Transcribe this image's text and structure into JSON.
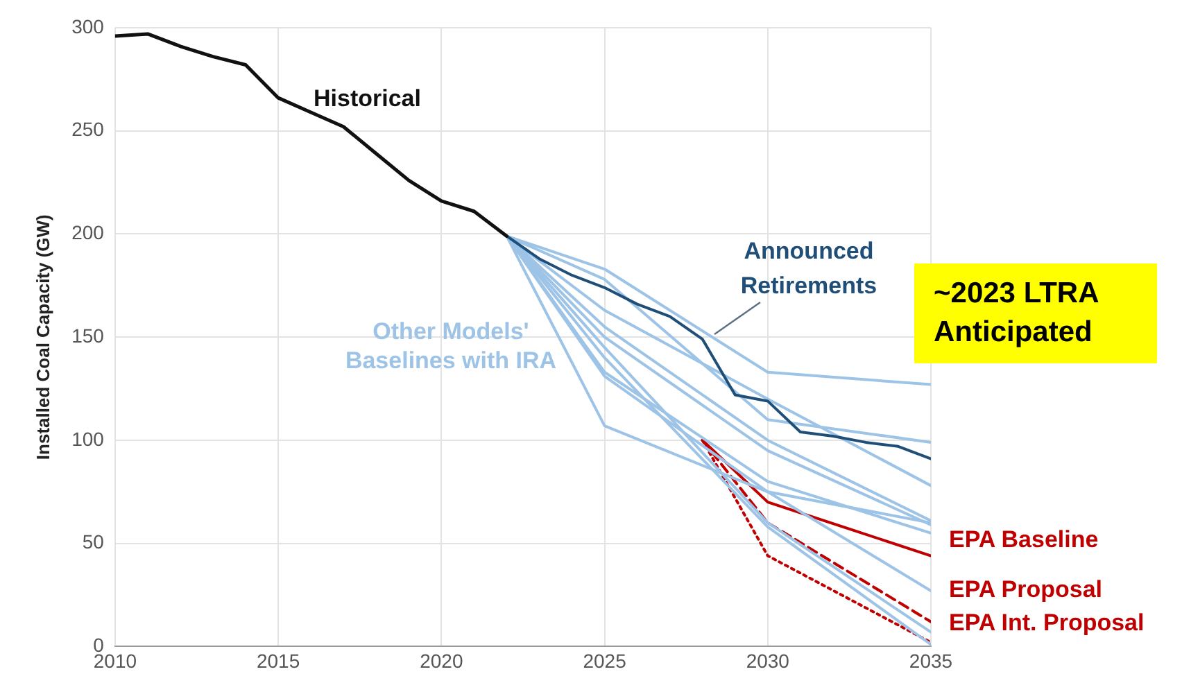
{
  "chart_data": {
    "type": "line",
    "ylabel": "Installed Coal Capacity (GW)",
    "xlim": [
      2010,
      2035
    ],
    "xticks": [
      2010,
      2015,
      2020,
      2025,
      2030,
      2035
    ],
    "ylim": [
      0,
      300
    ],
    "yticks": [
      0,
      50,
      100,
      150,
      200,
      250,
      300
    ],
    "grid": true,
    "legend": false,
    "marker": "none",
    "annotations": [
      "~2023 LTRA Anticipated"
    ],
    "series": [
      {
        "name": "Historical",
        "color": "#111111",
        "x": [
          2010,
          2011,
          2012,
          2013,
          2014,
          2015,
          2016,
          2017,
          2018,
          2019,
          2020,
          2021,
          2022
        ],
        "values": [
          296,
          297,
          291,
          286,
          282,
          266,
          259,
          252,
          239,
          226,
          216,
          211,
          199
        ]
      },
      {
        "name": "Announced Retirements",
        "color": "#1f4e79",
        "x": [
          2022,
          2023,
          2024,
          2025,
          2026,
          2027,
          2028,
          2029,
          2030,
          2031,
          2032,
          2033,
          2034,
          2035
        ],
        "values": [
          199,
          188,
          180,
          174,
          166,
          160,
          149,
          122,
          119,
          104,
          102,
          99,
          97,
          91
        ]
      },
      {
        "name": "Other Models' Baselines with IRA",
        "color": "#9dc3e6",
        "x": [
          2022,
          2025,
          2030,
          2035
        ],
        "values": [
          199,
          183,
          133,
          127
        ]
      },
      {
        "color": "#9dc3e6",
        "x": [
          2022,
          2025,
          2030,
          2035
        ],
        "values": [
          199,
          178,
          110,
          99
        ]
      },
      {
        "color": "#9dc3e6",
        "x": [
          2022,
          2025,
          2030,
          2035
        ],
        "values": [
          199,
          163,
          120,
          78
        ]
      },
      {
        "color": "#9dc3e6",
        "x": [
          2022,
          2025,
          2030,
          2035
        ],
        "values": [
          199,
          155,
          100,
          61
        ]
      },
      {
        "color": "#9dc3e6",
        "x": [
          2022,
          2025,
          2030,
          2035
        ],
        "values": [
          199,
          150,
          95,
          59
        ]
      },
      {
        "color": "#9dc3e6",
        "x": [
          2022,
          2025,
          2030,
          2035
        ],
        "values": [
          199,
          133,
          80,
          55
        ]
      },
      {
        "color": "#9dc3e6",
        "x": [
          2022,
          2025,
          2030,
          2035
        ],
        "values": [
          199,
          131,
          75,
          27
        ]
      },
      {
        "color": "#9dc3e6",
        "x": [
          2022,
          2025,
          2030,
          2035
        ],
        "values": [
          199,
          107,
          75,
          60
        ]
      },
      {
        "color": "#9dc3e6",
        "x": [
          2022,
          2025,
          2030,
          2035
        ],
        "values": [
          199,
          145,
          60,
          7
        ]
      },
      {
        "color": "#9dc3e6",
        "x": [
          2022,
          2025,
          2030,
          2035
        ],
        "values": [
          199,
          140,
          58,
          1
        ]
      },
      {
        "name": "EPA Baseline",
        "color": "#c00000",
        "x": [
          2028,
          2030,
          2035
        ],
        "values": [
          100,
          70,
          44
        ]
      },
      {
        "name": "EPA Proposal",
        "color": "#c00000",
        "line_style": "dashed",
        "x": [
          2028,
          2030,
          2035
        ],
        "values": [
          100,
          60,
          12
        ]
      },
      {
        "name": "EPA Int. Proposal",
        "color": "#c00000",
        "line_style": "dotted",
        "x": [
          2028,
          2030,
          2035
        ],
        "values": [
          100,
          44,
          2
        ]
      }
    ]
  }
}
